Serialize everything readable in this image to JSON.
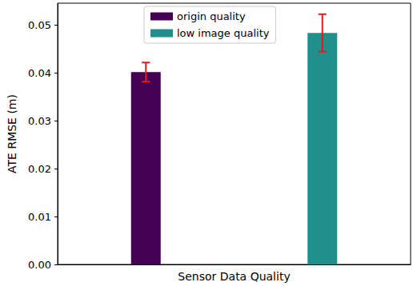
{
  "chart_data": {
    "type": "bar",
    "x_label": "Sensor Data Quality",
    "y_label": "ATE RMSE (m)",
    "categories": [
      null,
      null
    ],
    "series": [
      {
        "name": "origin quality",
        "color": "#440154",
        "values": [
          0.0402,
          null
        ],
        "errors": [
          0.002,
          null
        ]
      },
      {
        "name": "low image quality",
        "color": "#21908d",
        "values": [
          null,
          0.0484
        ],
        "errors": [
          null,
          0.0039
        ]
      }
    ],
    "error_color": "#e41a1c",
    "ylim": [
      0,
      0.0546
    ],
    "yticks": [
      {
        "value": 0,
        "label": "0.00"
      },
      {
        "value": 0.01,
        "label": "0.01"
      },
      {
        "value": 0.02,
        "label": "0.02"
      },
      {
        "value": 0.03,
        "label": "0.03"
      },
      {
        "value": 0.04,
        "label": "0.04"
      },
      {
        "value": 0.05,
        "label": "0.05"
      }
    ],
    "tick_labels": "y",
    "legend": "upper center",
    "grid": false
  }
}
